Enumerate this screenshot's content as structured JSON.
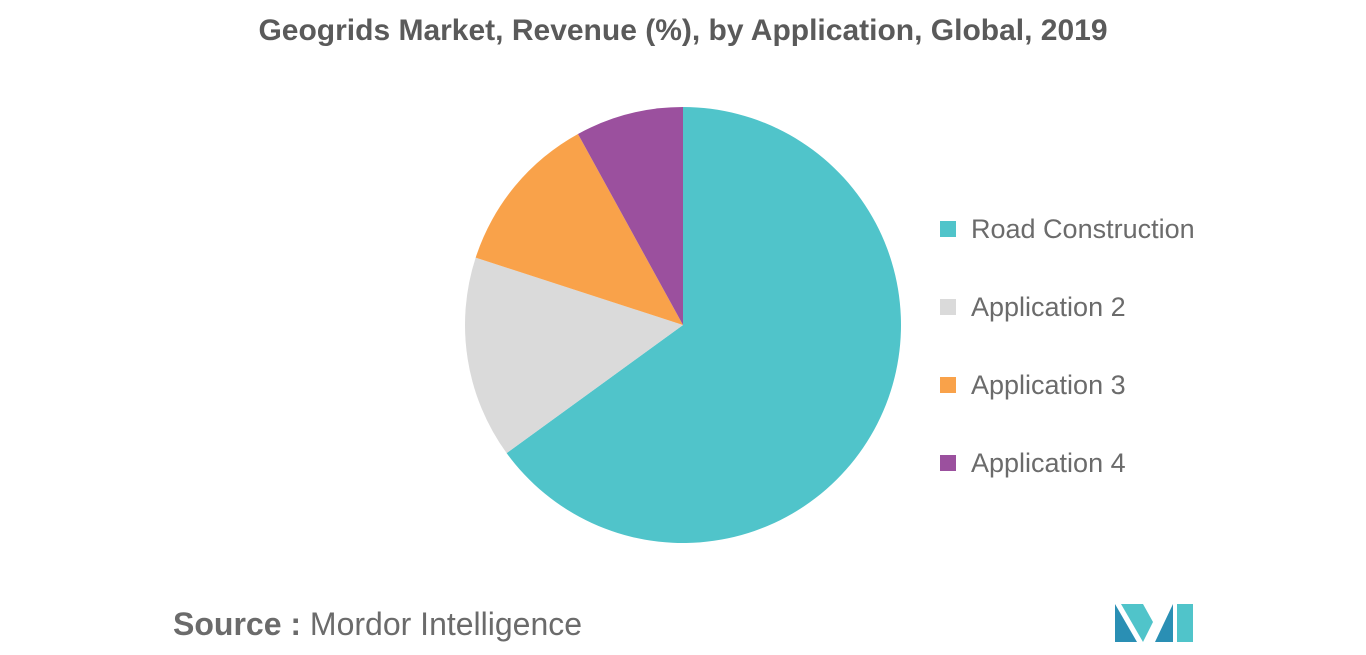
{
  "chart_data": {
    "type": "pie",
    "title": "Geogrids Market, Revenue (%), by Application, Global, 2019",
    "categories": [
      "Road Construction",
      "Application 2",
      "Application 3",
      "Application 4"
    ],
    "values": [
      65,
      15,
      12,
      8
    ],
    "colors": [
      "#50c4ca",
      "#dadada",
      "#f9a24a",
      "#9b509e"
    ],
    "legend_position": "right"
  },
  "source": {
    "label": "Source :",
    "value": "Mordor Intelligence"
  },
  "logo": {
    "colors": [
      "#2a8fb4",
      "#50c4ca"
    ]
  }
}
